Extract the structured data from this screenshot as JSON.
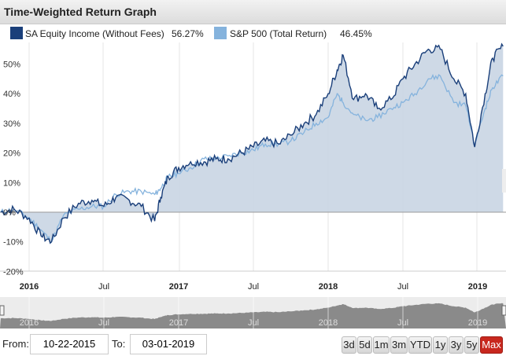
{
  "title": "Time-Weighted Return Graph",
  "legend": [
    {
      "label": "SA Equity Income (Without Fees)",
      "value": "56.27%",
      "color": "#1a3f7a"
    },
    {
      "label": "S&P 500 (Total Return)",
      "value": "46.45%",
      "color": "#85b3dd"
    }
  ],
  "range": {
    "from_label": "From:",
    "from": "10-22-2015",
    "to_label": "To:",
    "to": "03-01-2019"
  },
  "buttons": [
    "3d",
    "5d",
    "1m",
    "3m",
    "YTD",
    "1y",
    "3y",
    "5y",
    "Max"
  ],
  "selected_button": "Max",
  "chart_data": {
    "type": "line",
    "title": "Time-Weighted Return Graph",
    "ylim": [
      -20,
      60
    ],
    "yticks": [
      "50%",
      "40%",
      "30%",
      "20%",
      "10%",
      "0%",
      "-10%",
      "-20%"
    ],
    "ytick_values": [
      50,
      40,
      30,
      20,
      10,
      0,
      -10,
      -20
    ],
    "xticks": [
      "2016",
      "Jul",
      "2017",
      "Jul",
      "2018",
      "Jul",
      "2019"
    ],
    "xtick_values": [
      2016,
      2016.5,
      2017,
      2017.5,
      2018,
      2018.5,
      2019
    ],
    "x": [
      2015.81,
      2015.9,
      2016.0,
      2016.08,
      2016.15,
      2016.23,
      2016.33,
      2016.42,
      2016.5,
      2016.58,
      2016.67,
      2016.75,
      2016.84,
      2016.88,
      2016.93,
      2017.0,
      2017.08,
      2017.17,
      2017.25,
      2017.33,
      2017.42,
      2017.5,
      2017.58,
      2017.67,
      2017.75,
      2017.84,
      2017.92,
      2018.0,
      2018.06,
      2018.1,
      2018.17,
      2018.25,
      2018.33,
      2018.42,
      2018.5,
      2018.58,
      2018.67,
      2018.75,
      2018.84,
      2018.92,
      2018.98,
      2019.05,
      2019.1,
      2019.17
    ],
    "series": [
      {
        "name": "SA Equity Income (Without Fees)",
        "color": "#1a3f7a",
        "values": [
          0,
          1,
          -2,
          -8,
          -10,
          -2,
          3,
          4,
          2,
          5,
          4,
          2,
          -3,
          5,
          12,
          15,
          17,
          17,
          18,
          18,
          20,
          22,
          24,
          23,
          26,
          30,
          33,
          40,
          48,
          53,
          38,
          40,
          35,
          38,
          45,
          50,
          55,
          55,
          45,
          40,
          22,
          40,
          52,
          56
        ]
      },
      {
        "name": "S&P 500 (Total Return)",
        "color": "#85b3dd",
        "values": [
          0,
          1,
          -2,
          -6,
          -10,
          -1,
          1,
          2,
          2,
          6,
          7,
          7,
          6,
          8,
          12,
          13,
          15,
          18,
          18,
          19,
          20,
          21,
          23,
          23,
          24,
          27,
          30,
          32,
          40,
          37,
          33,
          31,
          32,
          35,
          37,
          40,
          45,
          46,
          37,
          36,
          23,
          35,
          42,
          46
        ]
      }
    ]
  }
}
